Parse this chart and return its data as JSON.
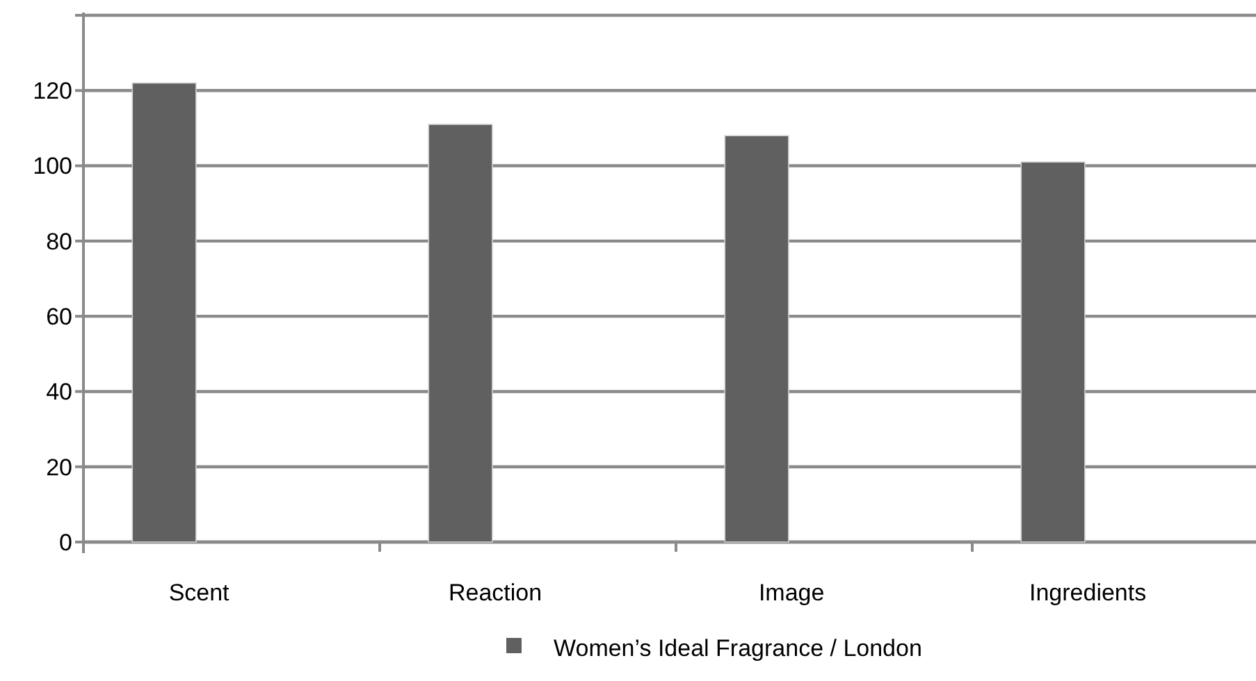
{
  "chart_data": {
    "type": "bar",
    "categories": [
      "Scent",
      "Reaction",
      "Image",
      "Ingredients"
    ],
    "series": [
      {
        "name": "Women’s Ideal Fragrance / London",
        "color": "#606060",
        "values": [
          122,
          111,
          108,
          101
        ]
      }
    ],
    "ylim": [
      0,
      140
    ],
    "yticks": [
      0,
      20,
      40,
      60,
      80,
      100,
      120,
      {
        "value": 140,
        "label": null
      }
    ],
    "grid": "y",
    "legend": "bottom"
  }
}
